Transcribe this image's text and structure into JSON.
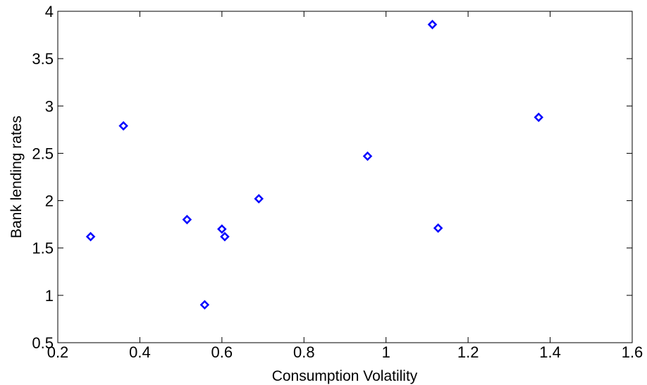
{
  "chart_data": {
    "type": "scatter",
    "title": "",
    "xlabel": "Consumption Volatility",
    "ylabel": "Bank lending rates",
    "xlim": [
      0.2,
      1.6
    ],
    "ylim": [
      0.5,
      4
    ],
    "xticks": [
      "0.2",
      "0.4",
      "0.6",
      "0.8",
      "1",
      "1.2",
      "1.4",
      "1.6"
    ],
    "yticks": [
      "0.5",
      "1",
      "1.5",
      "2",
      "2.5",
      "3",
      "3.5",
      "4"
    ],
    "grid": false,
    "legend": "none",
    "marker": "diamond",
    "marker_color": "#0000ff",
    "series": [
      {
        "x": [
          0.28,
          0.36,
          0.515,
          0.558,
          0.6,
          0.607,
          0.69,
          0.955,
          1.113,
          1.127,
          1.372
        ],
        "y": [
          1.62,
          2.79,
          1.8,
          0.9,
          1.7,
          1.62,
          2.02,
          2.47,
          3.86,
          1.71,
          2.88
        ]
      }
    ]
  }
}
